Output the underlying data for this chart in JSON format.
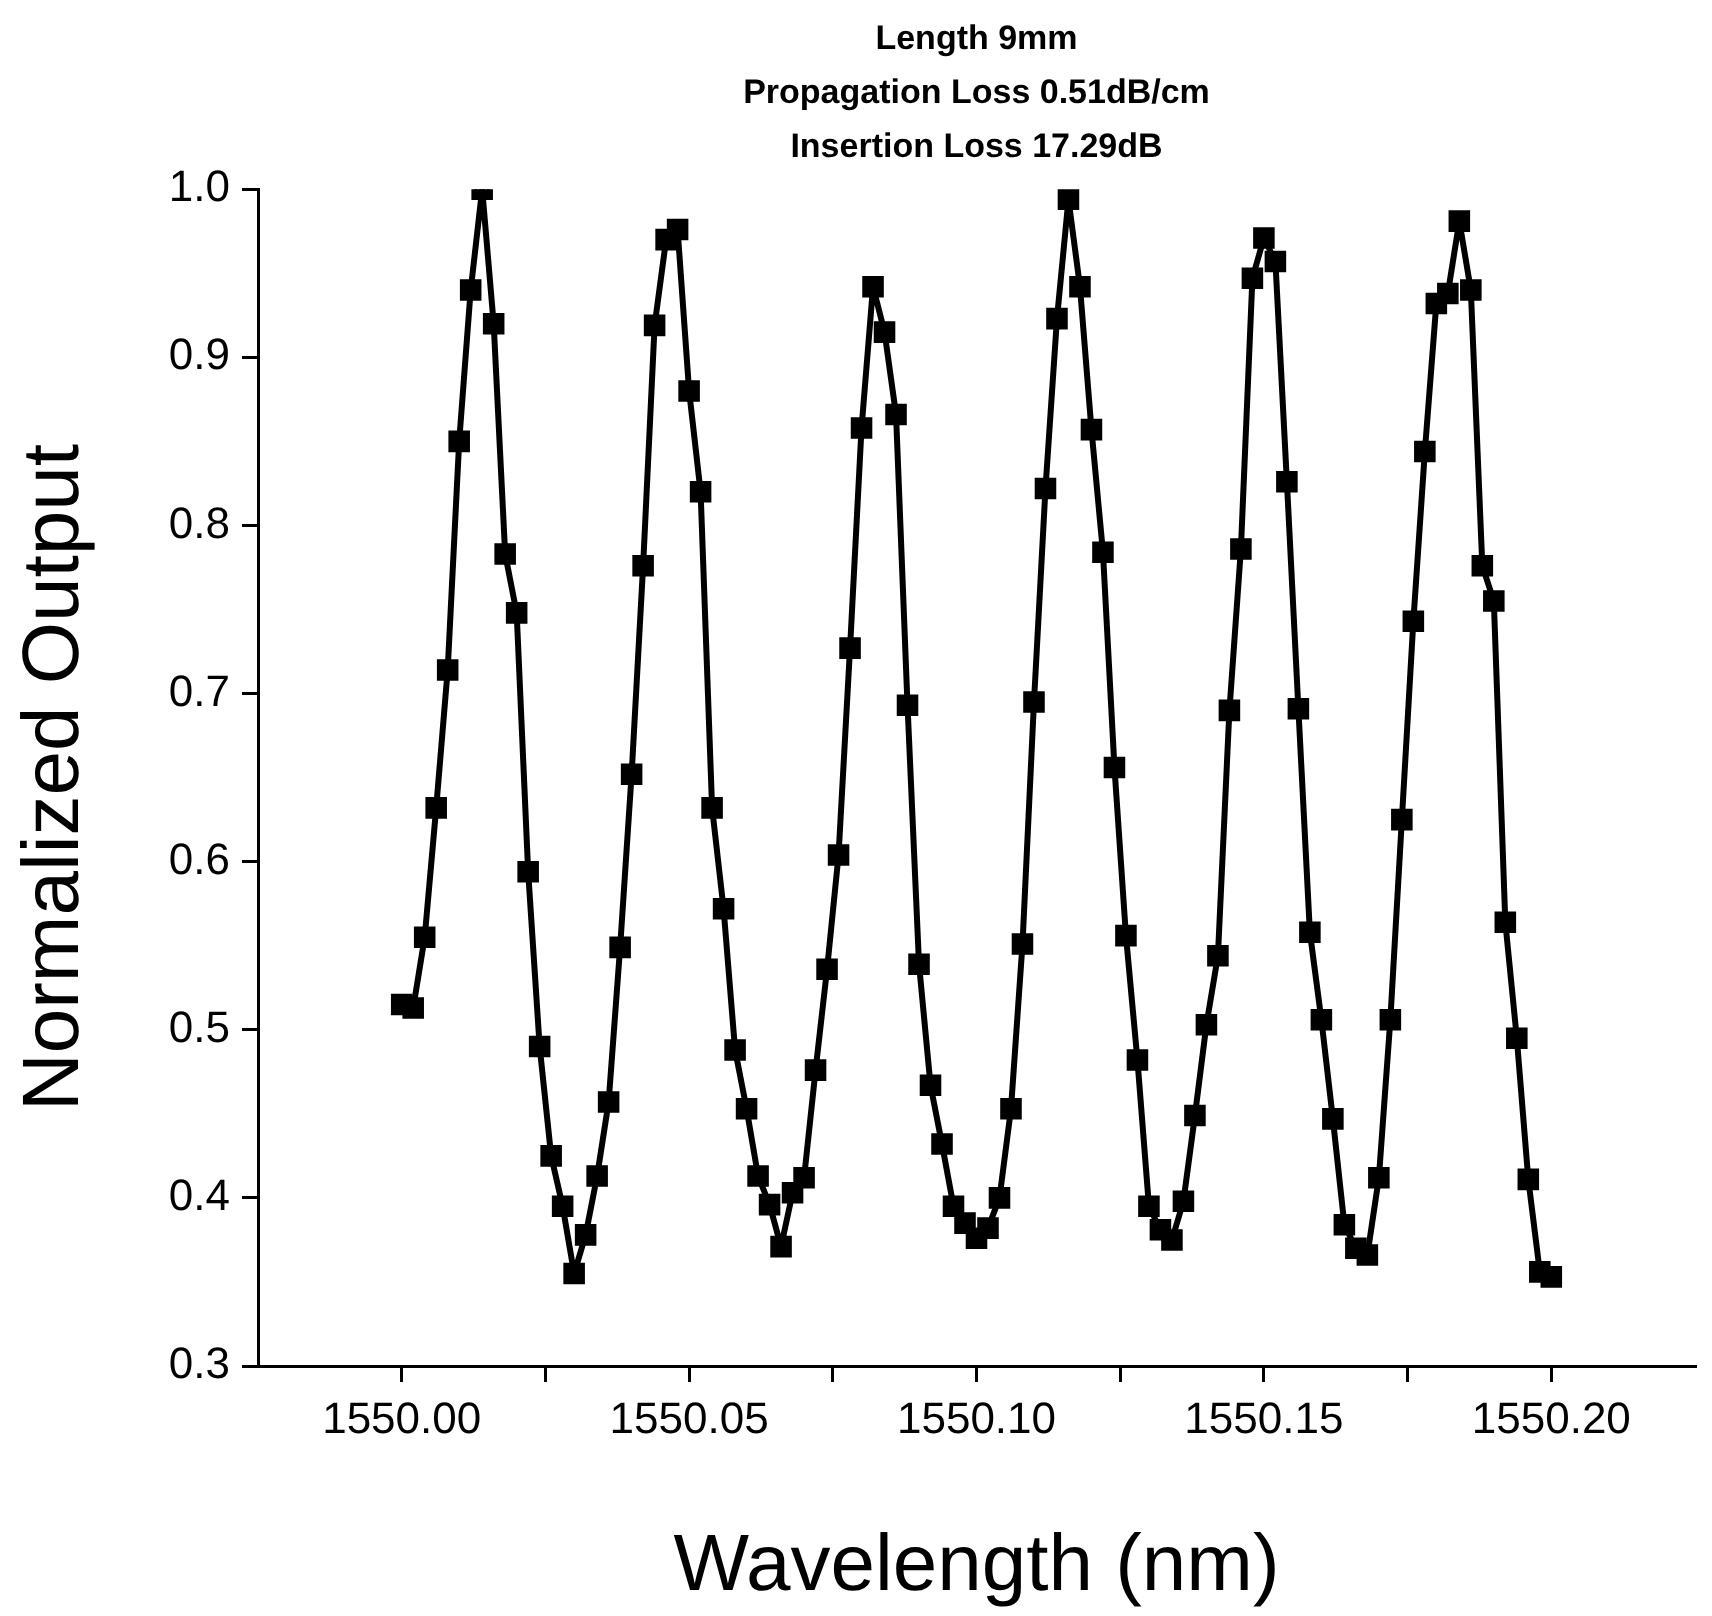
{
  "chart_data": {
    "type": "line",
    "title": "Length 9mm\nPropagation Loss 0.51dB/cm\nInsertion Loss 17.29dB",
    "xlabel": "Wavelength (nm)",
    "ylabel": "Normalized Output",
    "x": [
      1550.0,
      1550.002,
      1550.004,
      1550.006,
      1550.008,
      1550.01,
      1550.012,
      1550.014,
      1550.016,
      1550.018,
      1550.02,
      1550.022,
      1550.024,
      1550.026,
      1550.028,
      1550.03,
      1550.032,
      1550.034,
      1550.036,
      1550.038,
      1550.04,
      1550.042,
      1550.044,
      1550.046,
      1550.048,
      1550.05,
      1550.052,
      1550.054,
      1550.056,
      1550.058,
      1550.06,
      1550.062,
      1550.064,
      1550.066,
      1550.068,
      1550.07,
      1550.072,
      1550.074,
      1550.076,
      1550.078,
      1550.08,
      1550.082,
      1550.084,
      1550.086,
      1550.088,
      1550.09,
      1550.092,
      1550.094,
      1550.096,
      1550.098,
      1550.1,
      1550.102,
      1550.104,
      1550.106,
      1550.108,
      1550.11,
      1550.112,
      1550.114,
      1550.116,
      1550.118,
      1550.12,
      1550.122,
      1550.124,
      1550.126,
      1550.128,
      1550.13,
      1550.132,
      1550.134,
      1550.136,
      1550.138,
      1550.14,
      1550.142,
      1550.144,
      1550.146,
      1550.148,
      1550.15,
      1550.152,
      1550.154,
      1550.156,
      1550.158,
      1550.16,
      1550.162,
      1550.164,
      1550.166,
      1550.168,
      1550.17,
      1550.172,
      1550.174,
      1550.176,
      1550.178,
      1550.18,
      1550.182,
      1550.184,
      1550.186,
      1550.188,
      1550.19,
      1550.192,
      1550.194,
      1550.196,
      1550.198,
      1550.2
    ],
    "series": [
      {
        "color": "#000000",
        "values": [
          0.515,
          0.513,
          0.555,
          0.632,
          0.714,
          0.85,
          0.94,
          1.0,
          0.92,
          0.783,
          0.748,
          0.594,
          0.49,
          0.425,
          0.395,
          0.355,
          0.378,
          0.413,
          0.457,
          0.549,
          0.652,
          0.776,
          0.919,
          0.97,
          0.976,
          0.88,
          0.82,
          0.632,
          0.572,
          0.488,
          0.453,
          0.413,
          0.396,
          0.371,
          0.403,
          0.412,
          0.476,
          0.536,
          0.604,
          0.727,
          0.858,
          0.942,
          0.915,
          0.866,
          0.693,
          0.539,
          0.467,
          0.432,
          0.395,
          0.385,
          0.376,
          0.382,
          0.4,
          0.453,
          0.551,
          0.695,
          0.822,
          0.923,
          0.994,
          0.942,
          0.857,
          0.784,
          0.656,
          0.556,
          0.482,
          0.395,
          0.381,
          0.375,
          0.398,
          0.449,
          0.503,
          0.544,
          0.69,
          0.786,
          0.947,
          0.971,
          0.957,
          0.826,
          0.691,
          0.558,
          0.506,
          0.447,
          0.384,
          0.37,
          0.366,
          0.412,
          0.506,
          0.625,
          0.743,
          0.844,
          0.932,
          0.938,
          0.981,
          0.94,
          0.776,
          0.755,
          0.564,
          0.495,
          0.411,
          0.356,
          0.353
        ]
      }
    ],
    "xlim": [
      1549.975,
      1550.225
    ],
    "xticks": [
      {
        "value": 1550,
        "label": "1550.00"
      },
      {
        "value": 1550.025,
        "label": null
      },
      {
        "value": 1550.05,
        "label": "1550.05"
      },
      {
        "value": 1550.075,
        "label": null
      },
      {
        "value": 1550.1,
        "label": "1550.10"
      },
      {
        "value": 1550.125,
        "label": null
      },
      {
        "value": 1550.15,
        "label": "1550.15"
      },
      {
        "value": 1550.175,
        "label": null
      },
      {
        "value": 1550.2,
        "label": "1550.20"
      }
    ],
    "ylim": [
      0.3,
      1.0
    ],
    "yticks": [
      0.3,
      0.4,
      0.5,
      0.6,
      0.7,
      0.8,
      0.9,
      {
        "value": 1,
        "label": "1.0"
      }
    ],
    "grid": false,
    "legend": false,
    "marker": "square",
    "line_style": "solid"
  }
}
